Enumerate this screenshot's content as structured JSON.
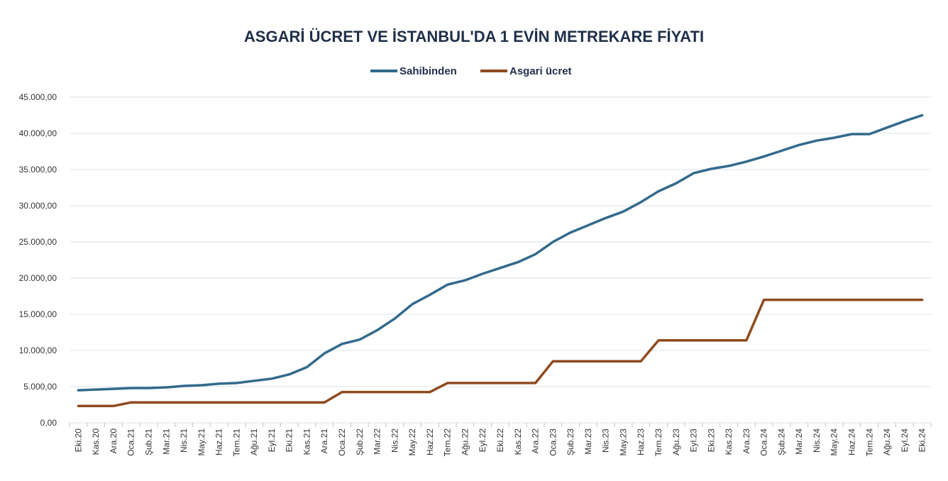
{
  "chart_data": {
    "type": "line",
    "title": "ASGARİ ÜCRET VE İSTANBUL'DA 1 EVİN METREKARE FİYATI",
    "xlabel": "",
    "ylabel": "",
    "ylim": [
      0,
      45000
    ],
    "yticks": [
      0,
      5000,
      10000,
      15000,
      20000,
      25000,
      30000,
      35000,
      40000,
      45000
    ],
    "ytick_labels": [
      "0,00",
      "5.000,00",
      "10.000,00",
      "15.000,00",
      "20.000,00",
      "25.000,00",
      "30.000,00",
      "35.000,00",
      "40.000,00",
      "45.000,00"
    ],
    "grid": true,
    "legend_position": "top",
    "categories": [
      "Eki.20",
      "Kas.20",
      "Ara.20",
      "Oca.21",
      "Şub.21",
      "Mar.21",
      "Nis.21",
      "May.21",
      "Haz.21",
      "Tem.21",
      "Ağu.21",
      "Eyl.21",
      "Eki.21",
      "Kas.21",
      "Ara.21",
      "Oca.22",
      "Şub.22",
      "Mar.22",
      "Nis.22",
      "May.22",
      "Haz.22",
      "Tem.22",
      "Ağu.22",
      "Eyl.22",
      "Eki.22",
      "Kas.22",
      "Ara.22",
      "Oca.23",
      "Şub.23",
      "Mar.23",
      "Nis.23",
      "May.23",
      "Haz.23",
      "Tem.23",
      "Ağu.23",
      "Eyl.23",
      "Eki.23",
      "Kas.23",
      "Ara.23",
      "Oca.24",
      "Şub.24",
      "Mar.24",
      "Nis.24",
      "May.24",
      "Haz.24",
      "Tem.24",
      "Ağu.24",
      "Eyl.24",
      "Eki.24"
    ],
    "series": [
      {
        "name": "Sahibinden",
        "color": "#336a8c",
        "values": [
          4500,
          4600,
          4700,
          4800,
          4800,
          4900,
          5100,
          5200,
          5400,
          5500,
          5800,
          6100,
          6700,
          7700,
          9600,
          10900,
          11500,
          12800,
          14400,
          16400,
          17700,
          19100,
          19700,
          20600,
          21400,
          22200,
          23300,
          25000,
          26300,
          27300,
          28300,
          29200,
          30500,
          32000,
          33100,
          34500,
          35100,
          35500,
          36100,
          36800,
          37600,
          38400,
          39000,
          39400,
          39900,
          39900,
          40800,
          41700,
          42500
        ]
      },
      {
        "name": "Asgari ücret",
        "color": "#8e4a1f",
        "values": [
          2324,
          2324,
          2324,
          2826,
          2826,
          2826,
          2826,
          2826,
          2826,
          2826,
          2826,
          2826,
          2826,
          2826,
          2826,
          4253,
          4253,
          4253,
          4253,
          4253,
          4253,
          5500,
          5500,
          5500,
          5500,
          5500,
          5500,
          8507,
          8507,
          8507,
          8507,
          8507,
          8507,
          11402,
          11402,
          11402,
          11402,
          11402,
          11402,
          17002,
          17002,
          17002,
          17002,
          17002,
          17002,
          17002,
          17002,
          17002,
          17002
        ]
      }
    ]
  }
}
